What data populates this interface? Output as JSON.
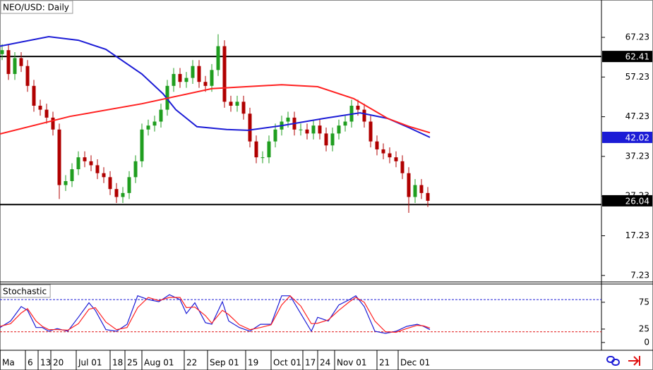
{
  "chart_data": [
    {
      "type": "candlestick",
      "title": "NEO/USD: Daily",
      "x": [
        1,
        4,
        7,
        10,
        13,
        16,
        19,
        22,
        25,
        28,
        31,
        34,
        37,
        40,
        43,
        46,
        49,
        52,
        55,
        58,
        61,
        64,
        67,
        70,
        73,
        76,
        79,
        82,
        85,
        88,
        91,
        94,
        97,
        100,
        103,
        106,
        109,
        112,
        115,
        118,
        121,
        124,
        127,
        130,
        133,
        136,
        139,
        142,
        145,
        148,
        151,
        154,
        157,
        160,
        163,
        166,
        169,
        172,
        175,
        178,
        181,
        184,
        187,
        190,
        193,
        196,
        199,
        202
      ],
      "open": [
        63,
        64,
        58,
        62,
        60,
        55,
        50,
        49,
        47,
        44,
        30,
        31,
        34,
        37,
        36,
        35,
        33,
        32,
        29,
        27,
        28,
        32,
        36,
        44,
        45,
        46,
        49,
        55,
        58,
        56,
        57,
        60,
        56,
        55,
        59,
        65,
        51,
        50,
        51,
        48,
        41,
        37,
        37,
        41,
        44,
        46,
        47,
        44,
        44,
        43,
        45,
        43,
        40,
        43,
        45,
        46,
        50,
        49,
        46,
        41,
        39,
        38,
        37,
        36,
        33,
        27,
        30,
        28
      ],
      "high": [
        65.5,
        65.5,
        63.5,
        63.5,
        61.5,
        56.5,
        51.5,
        50.5,
        48.5,
        45.5,
        32.5,
        35.5,
        38.5,
        38.5,
        37.5,
        36.5,
        34.5,
        33.5,
        30.5,
        29.5,
        33.5,
        37.5,
        45.5,
        46.5,
        47.5,
        50.5,
        56.5,
        59.5,
        59.5,
        58.5,
        61.5,
        61.5,
        57.5,
        60.5,
        68,
        66.5,
        52.5,
        52.5,
        52.5,
        49.5,
        42.5,
        38.5,
        42.5,
        45.5,
        47.5,
        48.5,
        48.5,
        45.5,
        45.5,
        46.5,
        46.5,
        44.5,
        44.5,
        46.5,
        47.5,
        51.5,
        51.5,
        50.5,
        47.5,
        42.5,
        40.5,
        39.5,
        38.5,
        37.5,
        34.5,
        31.5,
        31.5,
        29.5
      ],
      "low": [
        61.5,
        56.5,
        56.5,
        58.5,
        53.5,
        48.5,
        47.5,
        45.5,
        42.5,
        26.5,
        28.5,
        29.5,
        32.5,
        34.5,
        33.5,
        31.5,
        30.5,
        27.5,
        25.5,
        25.5,
        26.5,
        30.5,
        34.5,
        42.5,
        43.5,
        44.5,
        47.5,
        53.5,
        54.5,
        54.5,
        55.5,
        54.5,
        53.5,
        53.5,
        57.5,
        49.5,
        48.5,
        48.5,
        46.5,
        39.5,
        35.5,
        35.5,
        35.5,
        39.5,
        42.5,
        44.5,
        42.5,
        42.5,
        41.5,
        41.5,
        41.5,
        38.5,
        38.5,
        41.5,
        43.5,
        44.5,
        47.5,
        44.5,
        39.5,
        37.5,
        36.5,
        35.5,
        34.5,
        31.5,
        23,
        25.5,
        26.5,
        24.5
      ],
      "close": [
        64,
        58,
        62,
        60,
        55,
        50,
        49,
        47,
        44,
        30,
        31,
        34,
        37,
        36,
        35,
        33,
        32,
        29,
        27,
        28,
        32,
        36,
        44,
        45,
        46,
        49,
        55,
        58,
        56,
        57,
        60,
        56,
        55,
        59,
        65,
        51,
        50,
        51,
        48,
        41,
        37,
        37,
        41,
        44,
        46,
        47,
        44,
        44,
        43,
        45,
        43,
        40,
        43,
        45,
        46,
        50,
        49,
        46,
        41,
        39,
        38,
        37,
        36,
        33,
        27,
        30,
        28,
        26.04
      ],
      "up_color": "#1f9e1f",
      "down_color": "#b00000",
      "series": [
        {
          "color": "#1c1cd6",
          "x": [
            0,
            23,
            37,
            50,
            67,
            77,
            83,
            93,
            107,
            117,
            133,
            153,
            170,
            183,
            193,
            203
          ],
          "values": [
            65,
            67.4,
            66.5,
            64.2,
            58,
            53,
            49,
            44.7,
            44,
            43.8,
            45,
            46.8,
            48.2,
            46.8,
            44.5,
            42.02
          ]
        },
        {
          "color": "#ff2020",
          "x": [
            0,
            33,
            67,
            100,
            133,
            150,
            167,
            183,
            193,
            203
          ],
          "values": [
            42.9,
            47.3,
            50.5,
            54.3,
            55.3,
            54.8,
            51.8,
            46.8,
            44.8,
            43.2
          ]
        }
      ],
      "levels": [
        {
          "value": 62.41,
          "color": "#000000"
        },
        {
          "value": 25.1,
          "color": "#000000"
        }
      ],
      "level_style": "solid",
      "price_labels": [
        {
          "value": 62.41,
          "color": "#000000"
        },
        {
          "value": 42.02,
          "color": "#1c1cd6"
        },
        {
          "value": 26.04,
          "color": "#000000"
        }
      ],
      "xlim": [
        0,
        284
      ],
      "ylim": [
        5.6,
        76.64
      ],
      "yticks": [
        7.23,
        17.23,
        27.23,
        37.23,
        47.23,
        57.23,
        67.23
      ]
    },
    {
      "type": "line",
      "title": "Stochastic",
      "series": [
        {
          "color": "#1c1cd6",
          "x": [
            0,
            5,
            10,
            13,
            17,
            20,
            23,
            27,
            32,
            37,
            42,
            45,
            50,
            55,
            60,
            65,
            70,
            75,
            80,
            85,
            88,
            92,
            97,
            100,
            105,
            108,
            113,
            118,
            123,
            128,
            133,
            137,
            142,
            147,
            150,
            155,
            160,
            165,
            168,
            172,
            177,
            182,
            187,
            192,
            197,
            200,
            203
          ],
          "values": [
            28,
            40,
            67,
            60,
            28,
            28,
            21,
            26,
            21,
            47,
            74,
            60,
            24,
            21,
            34,
            87,
            80,
            76,
            89,
            80,
            54,
            74,
            37,
            34,
            76,
            40,
            28,
            21,
            34,
            34,
            87,
            87,
            54,
            21,
            47,
            40,
            70,
            80,
            87,
            67,
            21,
            17,
            21,
            30,
            34,
            30,
            24
          ]
        },
        {
          "color": "#ff2020",
          "x": [
            0,
            5,
            10,
            13,
            17,
            20,
            23,
            27,
            32,
            37,
            42,
            45,
            50,
            55,
            60,
            65,
            70,
            75,
            80,
            85,
            88,
            92,
            97,
            100,
            105,
            108,
            113,
            118,
            123,
            128,
            133,
            137,
            142,
            147,
            150,
            155,
            160,
            165,
            168,
            172,
            177,
            182,
            187,
            192,
            197,
            200,
            203
          ],
          "values": [
            30,
            35,
            55,
            63,
            40,
            30,
            24,
            24,
            23,
            35,
            62,
            65,
            38,
            24,
            28,
            65,
            84,
            78,
            84,
            84,
            65,
            66,
            50,
            36,
            60,
            52,
            33,
            24,
            28,
            33,
            70,
            87,
            68,
            35,
            36,
            42,
            60,
            76,
            84,
            75,
            40,
            20,
            19,
            26,
            32,
            31,
            27
          ]
        }
      ],
      "levels": [
        {
          "value": 80,
          "color": "#1c1cd6"
        },
        {
          "value": 20,
          "color": "#e01010"
        }
      ],
      "level_style": "dashed",
      "xlim": [
        0,
        284
      ],
      "ylim": [
        -14.5,
        109
      ],
      "yticks": [
        0,
        25,
        75
      ],
      "xticks": [
        {
          "value": 0,
          "label": "Ma"
        },
        {
          "value": 12,
          "label": "6"
        },
        {
          "value": 18,
          "label": "13"
        },
        {
          "value": 24,
          "label": "20"
        },
        {
          "value": 36,
          "label": "Jul 01"
        },
        {
          "value": 52,
          "label": "18"
        },
        {
          "value": 59,
          "label": "25"
        },
        {
          "value": 67,
          "label": "Aug 01"
        },
        {
          "value": 87,
          "label": "22"
        },
        {
          "value": 98,
          "label": "Sep 01"
        },
        {
          "value": 116,
          "label": "19"
        },
        {
          "value": 128,
          "label": "Oct 01"
        },
        {
          "value": 143,
          "label": "17"
        },
        {
          "value": 150,
          "label": "24"
        },
        {
          "value": 158,
          "label": "Nov 01"
        },
        {
          "value": 178,
          "label": "21"
        },
        {
          "value": 188,
          "label": "Dec 01"
        }
      ]
    }
  ]
}
